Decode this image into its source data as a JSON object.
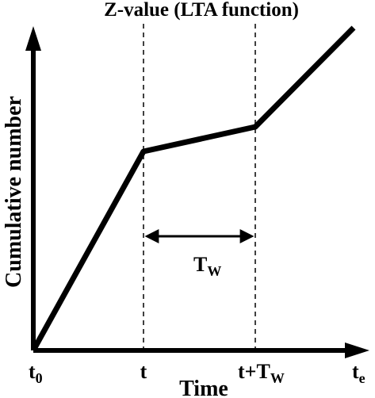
{
  "diagram": {
    "title": "Z-value (LTA function)",
    "y_axis_label": "Cumulative number",
    "x_axis_label": "Time",
    "ticks": {
      "t0": {
        "base": "t",
        "sub": "0"
      },
      "t": {
        "base": "t"
      },
      "t_plus_tw": {
        "base": "t+T",
        "sub": "W"
      },
      "te": {
        "base": "t",
        "sub": "e"
      }
    },
    "window_label": {
      "base": "T",
      "sub": "W"
    },
    "colors": {
      "ink": "#000000",
      "background": "#ffffff"
    }
  }
}
